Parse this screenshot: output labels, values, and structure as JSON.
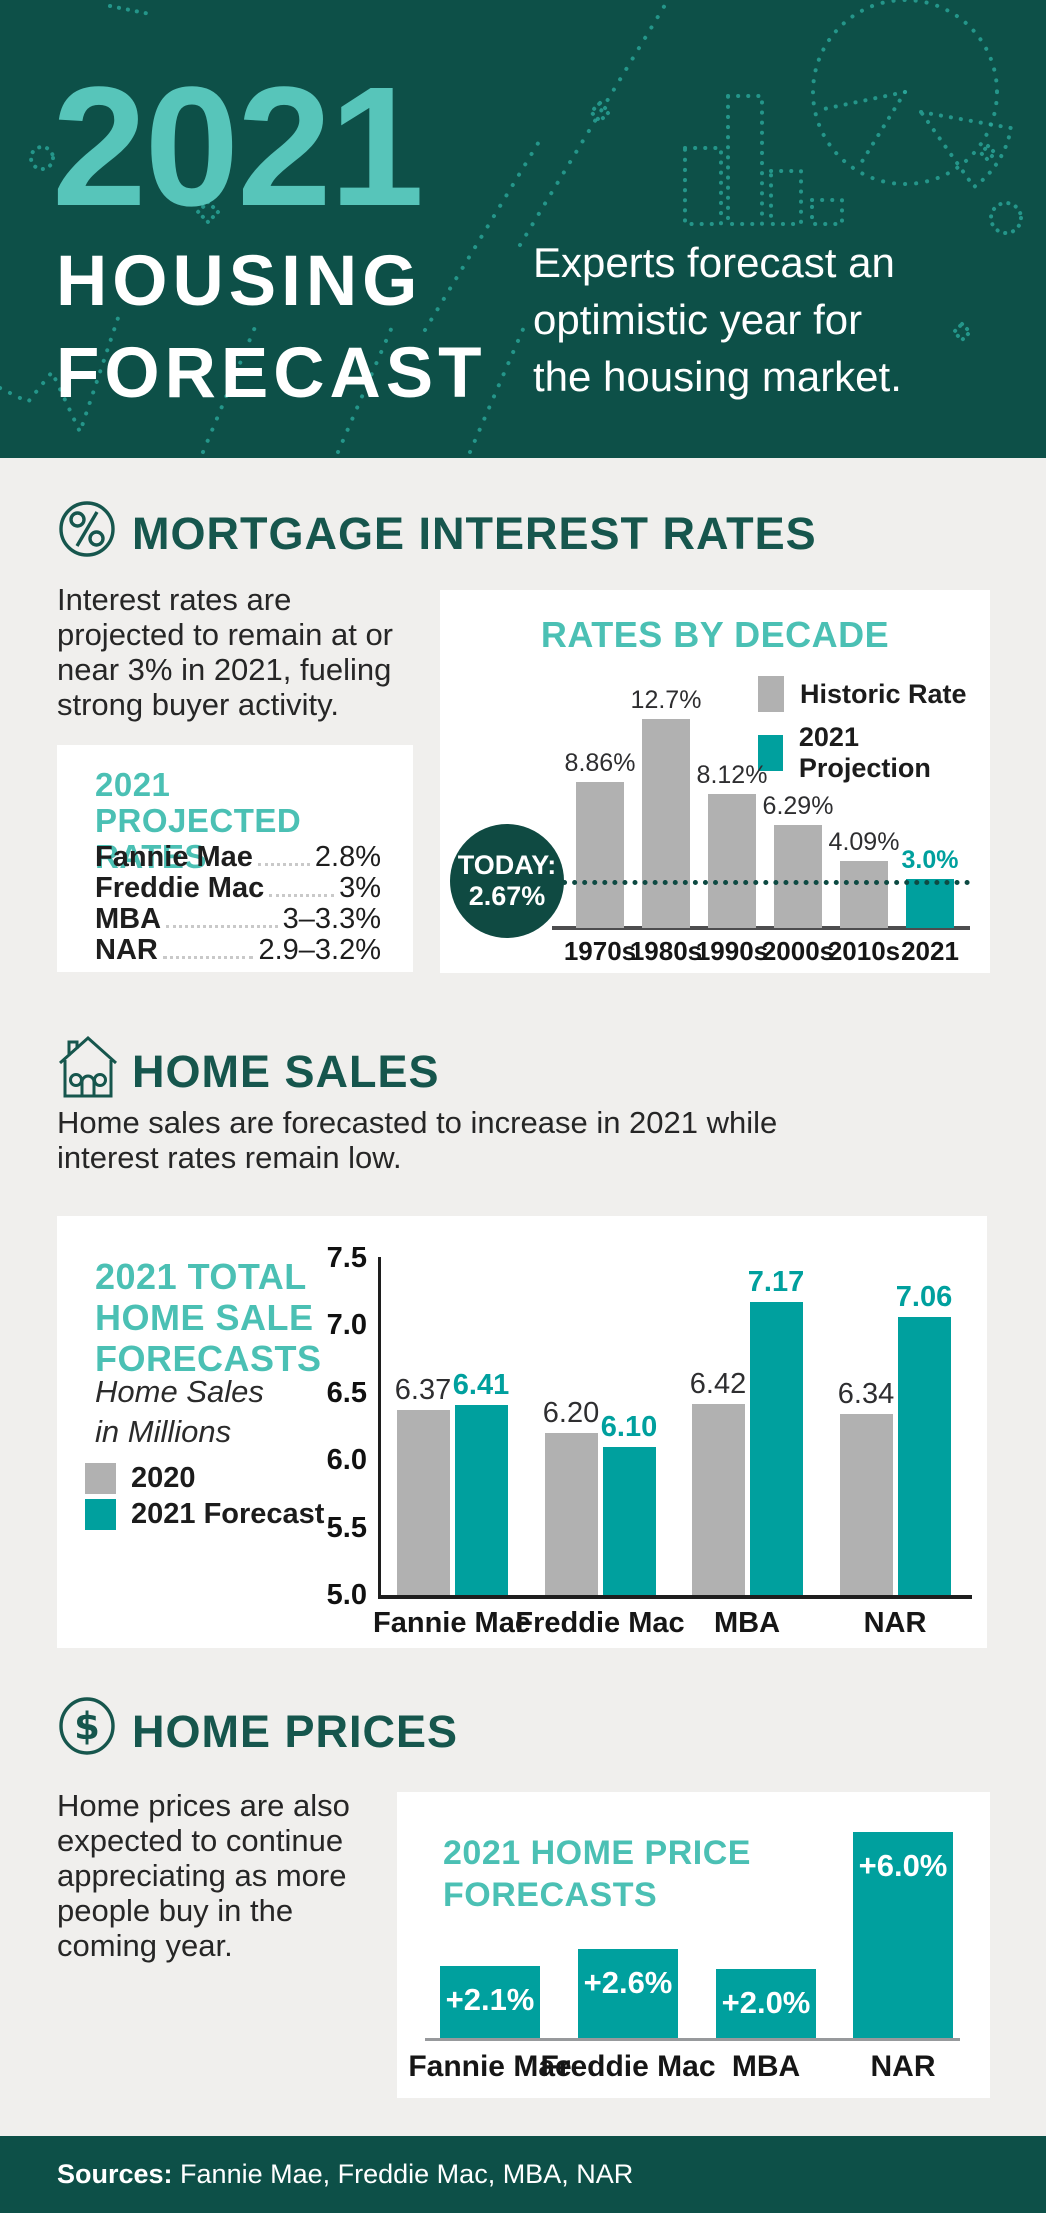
{
  "colors": {
    "header_bg": "#0D5048",
    "accent_light_teal": "#57C5BA",
    "card_title_teal": "#4BC0B4",
    "bar_teal": "#00A09E",
    "bar_gray": "#B1B1B1",
    "heading_dark_teal": "#16564D",
    "today_circle": "#0F4A42",
    "page_background": "#F0EFED"
  },
  "header": {
    "year": "2021",
    "title_line1": "HOUSING",
    "title_line2": "FORECAST",
    "tagline_lines": [
      "Experts forecast an",
      "optimistic year for",
      "the housing market."
    ]
  },
  "sections": {
    "mortgage": {
      "heading": "MORTGAGE INTEREST RATES",
      "icon": "percent-icon",
      "paragraph_lines": [
        "Interest rates are",
        "projected to remain at or",
        "near 3% in 2021, fueling",
        "strong buyer activity."
      ],
      "projected_card": {
        "title_line1": "2021",
        "title_line2": "PROJECTED RATES",
        "rows": [
          {
            "label": "Fannie Mae",
            "value": "2.8%"
          },
          {
            "label": "Freddie Mac",
            "value": "3%"
          },
          {
            "label": "MBA",
            "value": "3–3.3%"
          },
          {
            "label": "NAR",
            "value": "2.9–3.2%"
          }
        ]
      }
    },
    "home_sales": {
      "heading": "HOME SALES",
      "icon": "house-icon",
      "paragraph_lines": [
        "Home sales are forecasted to increase in 2021 while",
        "interest rates remain low."
      ]
    },
    "home_prices": {
      "heading": "HOME PRICES",
      "icon": "dollar-icon",
      "paragraph_lines": [
        "Home prices are also",
        "expected to continue",
        "appreciating as more",
        "people buy in the",
        "coming year."
      ]
    }
  },
  "chart_data": [
    {
      "id": "rates_by_decade",
      "type": "bar",
      "title": "RATES BY DECADE",
      "categories": [
        "1970s",
        "1980s",
        "1990s",
        "2000s",
        "2010s",
        "2021"
      ],
      "values": [
        8.86,
        12.7,
        8.12,
        6.29,
        4.09,
        3.0
      ],
      "value_labels": [
        "8.86%",
        "12.7%",
        "8.12%",
        "6.29%",
        "4.09%",
        "3.0%"
      ],
      "bar_styles": [
        "gray",
        "gray",
        "gray",
        "gray",
        "gray",
        "teal"
      ],
      "legend": [
        {
          "label": "Historic Rate",
          "color": "#B1B1B1"
        },
        {
          "label": "2021 Projection",
          "color": "#00A09E"
        }
      ],
      "annotation": {
        "label_line1": "TODAY:",
        "label_line2": "2.67%",
        "value": 2.67
      },
      "ylim": [
        0,
        12.7
      ],
      "grid": false,
      "legend_position": "top-right"
    },
    {
      "id": "home_sales_forecasts",
      "type": "grouped_bar",
      "title": "2021 TOTAL HOME SALE FORECASTS",
      "title_lines": [
        "2021 TOTAL",
        "HOME SALE",
        "FORECASTS"
      ],
      "ylabel": "Home Sales in Millions",
      "ylabel_lines": [
        "Home Sales",
        "in Millions"
      ],
      "categories": [
        "Fannie Mae",
        "Freddie Mac",
        "MBA",
        "NAR"
      ],
      "series": [
        {
          "name": "2020",
          "color": "#B1B1B1",
          "values": [
            6.37,
            6.2,
            6.42,
            6.34
          ],
          "value_labels": [
            "6.37",
            "6.20",
            "6.42",
            "6.34"
          ]
        },
        {
          "name": "2021 Forecast",
          "color": "#00A09E",
          "values": [
            6.41,
            6.1,
            7.17,
            7.06
          ],
          "value_labels": [
            "6.41",
            "6.10",
            "7.17",
            "7.06"
          ]
        }
      ],
      "yticks": [
        "7.5",
        "7.0",
        "6.5",
        "6.0",
        "5.5",
        "5.0"
      ],
      "ylim": [
        5.0,
        7.5
      ],
      "grid": false,
      "legend_position": "left"
    },
    {
      "id": "home_price_forecasts",
      "type": "bar",
      "title": "2021 HOME PRICE FORECASTS",
      "title_lines": [
        "2021 HOME PRICE",
        "FORECASTS"
      ],
      "categories": [
        "Fannie Mae",
        "Freddie Mac",
        "MBA",
        "NAR"
      ],
      "values": [
        2.1,
        2.6,
        2.0,
        6.0
      ],
      "value_labels": [
        "+2.1%",
        "+2.6%",
        "+2.0%",
        "+6.0%"
      ],
      "bar_color": "#00A09E",
      "ylim": [
        0,
        6.5
      ],
      "grid": false
    }
  ],
  "footer": {
    "label": "Sources:",
    "text": " Fannie Mae, Freddie Mac, MBA, NAR"
  }
}
